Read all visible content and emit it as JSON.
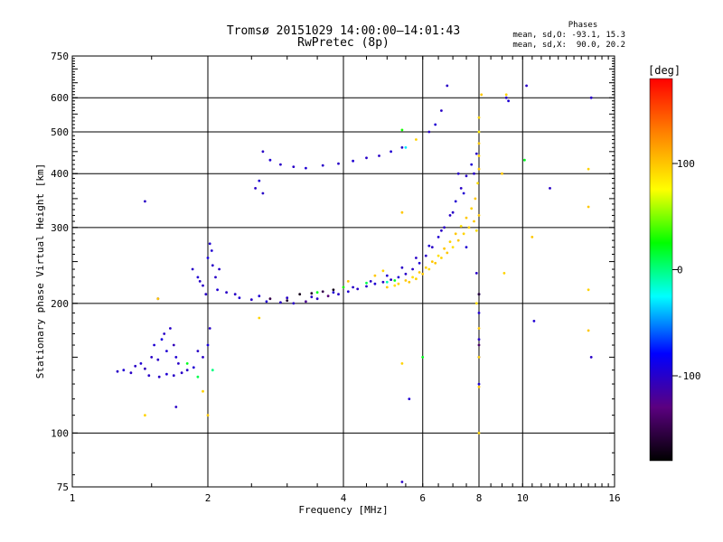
{
  "header": {
    "title_line1": "Tromsø 20151029 14:00:00–14:01:43",
    "title_line2": "RwPretec (8p)"
  },
  "phases_legend": {
    "title": "Phases",
    "line_o": "mean, sd,O: -93.1, 15.3",
    "line_x": "mean, sd,X:  90.0, 20.2"
  },
  "chart_data": {
    "type": "scatter",
    "xlabel": "Frequency [MHz]",
    "ylabel": "Stationary phase Virtual Height [km]",
    "x_scale": "log",
    "y_scale": "log",
    "xlim": [
      1,
      16
    ],
    "ylim": [
      75,
      750
    ],
    "x_ticks": [
      1,
      2,
      4,
      6,
      8,
      10,
      16
    ],
    "y_ticks": [
      75,
      100,
      200,
      300,
      400,
      500,
      600,
      750
    ],
    "x_gridlines": [
      2,
      4,
      6,
      8,
      10
    ],
    "y_gridlines": [
      100,
      200,
      300,
      400,
      500,
      600
    ],
    "grid": true,
    "colorbar": {
      "label": "[deg]",
      "ticks": [
        -100,
        0,
        100
      ],
      "range": [
        -180,
        180
      ],
      "colors": [
        "#000000",
        "#5b0080",
        "#0000ff",
        "#00ffff",
        "#00ff00",
        "#ffff00",
        "#ff8000",
        "#ff0000"
      ]
    },
    "series": [
      {
        "values": [
          [
            1.26,
            139,
            -100
          ],
          [
            1.3,
            140,
            -95
          ],
          [
            1.35,
            138,
            -100
          ],
          [
            1.38,
            143,
            -100
          ],
          [
            1.42,
            145,
            -95
          ],
          [
            1.45,
            141,
            -105
          ],
          [
            1.48,
            136,
            -100
          ],
          [
            1.5,
            150,
            -100
          ],
          [
            1.52,
            160,
            -95
          ],
          [
            1.55,
            148,
            -100
          ],
          [
            1.58,
            165,
            -90
          ],
          [
            1.6,
            170,
            -100
          ],
          [
            1.62,
            155,
            -95
          ],
          [
            1.65,
            175,
            -100
          ],
          [
            1.68,
            160,
            -105
          ],
          [
            1.7,
            150,
            -95
          ],
          [
            1.72,
            145,
            -100
          ],
          [
            1.75,
            138,
            -100
          ],
          [
            1.56,
            135,
            -100
          ],
          [
            1.62,
            137,
            -95
          ],
          [
            1.68,
            136,
            -100
          ],
          [
            1.8,
            140,
            -100
          ],
          [
            1.86,
            142,
            -95
          ],
          [
            1.9,
            155,
            -100
          ],
          [
            1.95,
            150,
            -100
          ],
          [
            2.0,
            160,
            -90
          ],
          [
            2.02,
            175,
            -100
          ],
          [
            1.85,
            240,
            -100
          ],
          [
            1.9,
            230,
            -95
          ],
          [
            1.95,
            220,
            -100
          ],
          [
            2.0,
            255,
            -90
          ],
          [
            2.02,
            275,
            -95
          ],
          [
            2.05,
            245,
            -100
          ],
          [
            2.08,
            230,
            -100
          ],
          [
            2.1,
            215,
            -95
          ],
          [
            1.98,
            210,
            -100
          ],
          [
            1.92,
            225,
            -100
          ],
          [
            2.04,
            265,
            -95
          ],
          [
            2.12,
            240,
            -100
          ],
          [
            2.2,
            212,
            -100
          ],
          [
            2.35,
            206,
            -95
          ],
          [
            2.5,
            204,
            -100
          ],
          [
            2.7,
            202,
            -95
          ],
          [
            2.9,
            201,
            -100
          ],
          [
            3.1,
            200,
            -100
          ],
          [
            3.3,
            202,
            -120
          ],
          [
            3.5,
            205,
            -100
          ],
          [
            3.7,
            208,
            -130
          ],
          [
            3.9,
            210,
            -100
          ],
          [
            4.1,
            213,
            -95
          ],
          [
            4.3,
            216,
            -100
          ],
          [
            4.5,
            219,
            -100
          ],
          [
            4.7,
            222,
            -95
          ],
          [
            4.9,
            224,
            -100
          ],
          [
            5.1,
            227,
            -100
          ],
          [
            5.3,
            230,
            -95
          ],
          [
            5.5,
            234,
            -100
          ],
          [
            5.7,
            240,
            -100
          ],
          [
            5.9,
            248,
            -95
          ],
          [
            6.1,
            258,
            -100
          ],
          [
            6.3,
            270,
            -100
          ],
          [
            6.5,
            285,
            -95
          ],
          [
            6.7,
            300,
            -100
          ],
          [
            6.9,
            320,
            -100
          ],
          [
            7.1,
            345,
            -95
          ],
          [
            7.3,
            370,
            -100
          ],
          [
            7.5,
            395,
            -100
          ],
          [
            7.7,
            420,
            -95
          ],
          [
            7.9,
            445,
            -100
          ],
          [
            2.3,
            210,
            -100
          ],
          [
            2.6,
            208,
            -95
          ],
          [
            3.0,
            206,
            -100
          ],
          [
            3.4,
            207,
            -100
          ],
          [
            3.8,
            212,
            -95
          ],
          [
            4.2,
            218,
            -100
          ],
          [
            4.6,
            225,
            -100
          ],
          [
            5.0,
            232,
            -95
          ],
          [
            5.4,
            242,
            -100
          ],
          [
            5.8,
            255,
            -100
          ],
          [
            6.2,
            272,
            -95
          ],
          [
            6.6,
            295,
            -100
          ],
          [
            7.0,
            325,
            -100
          ],
          [
            7.4,
            360,
            -95
          ],
          [
            7.8,
            400,
            -100
          ],
          [
            2.65,
            450,
            -100
          ],
          [
            2.75,
            430,
            -95
          ],
          [
            2.9,
            420,
            -100
          ],
          [
            3.1,
            415,
            -100
          ],
          [
            3.3,
            412,
            -95
          ],
          [
            3.6,
            418,
            -100
          ],
          [
            3.9,
            422,
            -100
          ],
          [
            4.2,
            428,
            -95
          ],
          [
            4.5,
            435,
            -100
          ],
          [
            4.8,
            440,
            -100
          ],
          [
            5.1,
            450,
            -95
          ],
          [
            5.4,
            460,
            -100
          ],
          [
            2.55,
            370,
            -100
          ],
          [
            2.6,
            385,
            -95
          ],
          [
            2.65,
            360,
            -100
          ],
          [
            6.2,
            500,
            -100
          ],
          [
            6.4,
            520,
            -95
          ],
          [
            6.6,
            560,
            -100
          ],
          [
            6.8,
            640,
            -100
          ],
          [
            7.2,
            400,
            -100
          ],
          [
            7.5,
            270,
            -95
          ],
          [
            7.9,
            235,
            -100
          ],
          [
            8.0,
            210,
            -100
          ],
          [
            8.0,
            190,
            -95
          ],
          [
            8.0,
            165,
            -100
          ],
          [
            8.0,
            150,
            -100
          ],
          [
            8.0,
            130,
            -95
          ],
          [
            9.2,
            600,
            -100
          ],
          [
            9.3,
            590,
            -95
          ],
          [
            10.2,
            640,
            -100
          ],
          [
            11.5,
            370,
            -100
          ],
          [
            14.2,
            600,
            -100
          ],
          [
            14.2,
            150,
            -100
          ],
          [
            10.6,
            182,
            -95
          ],
          [
            1.45,
            345,
            -100
          ],
          [
            1.55,
            205,
            -100
          ],
          [
            1.7,
            115,
            -100
          ],
          [
            5.4,
            77,
            -100
          ],
          [
            5.6,
            120,
            -95
          ]
        ]
      },
      {
        "values": [
          [
            5.3,
            222,
            95
          ],
          [
            5.5,
            226,
            100
          ],
          [
            5.7,
            230,
            90
          ],
          [
            5.9,
            236,
            100
          ],
          [
            6.1,
            242,
            95
          ],
          [
            6.3,
            250,
            100
          ],
          [
            6.5,
            258,
            90
          ],
          [
            6.7,
            268,
            100
          ],
          [
            6.9,
            278,
            95
          ],
          [
            7.1,
            290,
            100
          ],
          [
            7.3,
            302,
            90
          ],
          [
            7.5,
            316,
            100
          ],
          [
            7.7,
            332,
            95
          ],
          [
            7.85,
            350,
            100
          ],
          [
            7.95,
            380,
            90
          ],
          [
            8.0,
            410,
            100
          ],
          [
            8.0,
            440,
            95
          ],
          [
            8.0,
            470,
            100
          ],
          [
            7.6,
            300,
            95
          ],
          [
            7.8,
            310,
            100
          ],
          [
            7.9,
            295,
            90
          ],
          [
            8.0,
            320,
            100
          ],
          [
            7.4,
            290,
            95
          ],
          [
            7.2,
            280,
            100
          ],
          [
            7.0,
            270,
            90
          ],
          [
            6.8,
            262,
            100
          ],
          [
            6.6,
            255,
            95
          ],
          [
            6.4,
            248,
            100
          ],
          [
            6.2,
            240,
            90
          ],
          [
            6.0,
            234,
            100
          ],
          [
            5.8,
            228,
            95
          ],
          [
            5.6,
            224,
            100
          ],
          [
            5.2,
            220,
            90
          ],
          [
            5.0,
            218,
            100
          ],
          [
            8.0,
            500,
            85
          ],
          [
            8.0,
            540,
            95
          ],
          [
            8.1,
            610,
            100
          ],
          [
            9.2,
            610,
            95
          ],
          [
            9.0,
            400,
            100
          ],
          [
            9.1,
            235,
            95
          ],
          [
            10.1,
            430,
            20
          ],
          [
            10.5,
            285,
            100
          ],
          [
            14.0,
            410,
            95
          ],
          [
            14.0,
            335,
            100
          ],
          [
            14.0,
            215,
            95
          ],
          [
            14.0,
            173,
            100
          ],
          [
            7.9,
            200,
            90
          ],
          [
            8.0,
            175,
            100
          ],
          [
            8.0,
            150,
            95
          ],
          [
            8.0,
            128,
            100
          ],
          [
            8.0,
            100,
            95
          ],
          [
            1.45,
            110,
            95
          ],
          [
            1.55,
            205,
            100
          ],
          [
            2.6,
            185,
            95
          ],
          [
            2.0,
            110,
            100
          ],
          [
            1.95,
            125,
            95
          ],
          [
            5.4,
            145,
            95
          ],
          [
            5.4,
            325,
            100
          ],
          [
            5.8,
            480,
            95
          ],
          [
            4.7,
            232,
            100
          ],
          [
            4.9,
            238,
            95
          ],
          [
            4.1,
            225,
            100
          ]
        ]
      },
      {
        "values": [
          [
            3.2,
            210,
            -170
          ],
          [
            3.4,
            211,
            -160
          ],
          [
            3.6,
            213,
            -150
          ],
          [
            3.8,
            215,
            -170
          ],
          [
            2.75,
            205,
            -150
          ],
          [
            3.0,
            203,
            -160
          ],
          [
            8.0,
            210,
            -160
          ],
          [
            8.0,
            160,
            -140
          ],
          [
            5.0,
            224,
            -10
          ],
          [
            5.2,
            226,
            20
          ],
          [
            4.5,
            223,
            10
          ],
          [
            4.0,
            218,
            30
          ],
          [
            3.5,
            212,
            20
          ],
          [
            1.8,
            145,
            20
          ],
          [
            1.9,
            135,
            10
          ],
          [
            2.05,
            140,
            0
          ],
          [
            6.0,
            150,
            20
          ],
          [
            5.4,
            505,
            30
          ],
          [
            5.5,
            460,
            -30
          ]
        ]
      }
    ]
  }
}
